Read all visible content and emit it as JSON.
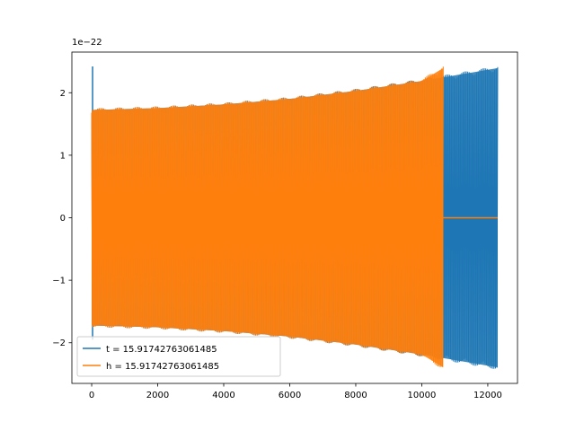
{
  "chart_data": {
    "type": "line",
    "title": "",
    "xlabel": "",
    "ylabel": "",
    "xlim": [
      -600,
      12900
    ],
    "ylim": [
      -2.65,
      2.65
    ],
    "y_offset_label": "1e−22",
    "grid": false,
    "legend_position": "lower-left",
    "x_ticks": [
      {
        "value": 0,
        "label": "0"
      },
      {
        "value": 2000,
        "label": "2000"
      },
      {
        "value": 4000,
        "label": "4000"
      },
      {
        "value": 6000,
        "label": "6000"
      },
      {
        "value": 8000,
        "label": "8000"
      },
      {
        "value": 10000,
        "label": "10000"
      },
      {
        "value": 12000,
        "label": "12000"
      }
    ],
    "y_ticks": [
      {
        "value": -2,
        "label": "−2"
      },
      {
        "value": -1,
        "label": "−1"
      },
      {
        "value": 0,
        "label": "0"
      },
      {
        "value": 1,
        "label": "1"
      },
      {
        "value": 2,
        "label": "2"
      }
    ],
    "series": [
      {
        "name": "t = 15.91742763061485",
        "color": "#1f77b4",
        "x_end": 12300,
        "envelope": [
          {
            "x": 0,
            "amp": 1.75
          },
          {
            "x": 2000,
            "amp": 1.78
          },
          {
            "x": 4000,
            "amp": 1.84
          },
          {
            "x": 6000,
            "amp": 1.93
          },
          {
            "x": 8000,
            "amp": 2.06
          },
          {
            "x": 10000,
            "amp": 2.22
          },
          {
            "x": 12300,
            "amp": 2.43
          }
        ],
        "startup_spike": {
          "x": 0,
          "max": 2.42,
          "min": -1.95
        }
      },
      {
        "name": "h = 15.91742763061485",
        "color": "#ff7f0e",
        "x_end": 10650,
        "envelope": [
          {
            "x": 0,
            "amp": 1.75
          },
          {
            "x": 2000,
            "amp": 1.78
          },
          {
            "x": 4000,
            "amp": 1.84
          },
          {
            "x": 6000,
            "amp": 1.93
          },
          {
            "x": 8000,
            "amp": 2.06
          },
          {
            "x": 10000,
            "amp": 2.22
          },
          {
            "x": 10650,
            "amp": 2.43
          }
        ],
        "tail": {
          "x_start": 10650,
          "x_end": 12300,
          "value": 0
        }
      }
    ]
  }
}
